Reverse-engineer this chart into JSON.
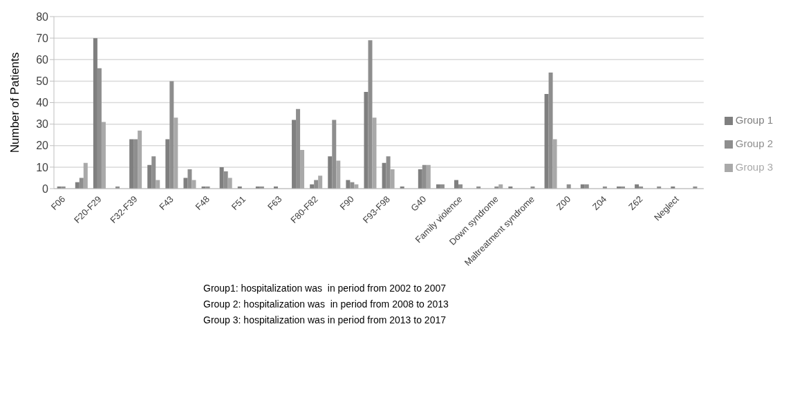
{
  "chart_data": {
    "type": "bar",
    "ylabel": "Number of Patients",
    "categories": [
      "F06",
      null,
      "F20-F29",
      null,
      "F32-F39",
      null,
      "F43",
      null,
      "F48",
      null,
      "F51",
      null,
      "F63",
      null,
      "F80-F82",
      null,
      "F90",
      null,
      "F93-F98",
      null,
      "G40",
      null,
      "Family violence",
      null,
      "Down syndrome",
      null,
      "Maltreatment syndrome",
      null,
      "Z00",
      null,
      "Z04",
      null,
      "Z62",
      null,
      "Neglect",
      null
    ],
    "series": [
      {
        "name": "Group 1",
        "color": "#7f7f7f",
        "values": [
          1,
          3,
          70,
          0,
          23,
          11,
          23,
          5,
          1,
          10,
          1,
          1,
          1,
          32,
          2,
          15,
          4,
          45,
          12,
          1,
          9,
          2,
          4,
          0,
          0,
          1,
          0,
          44,
          0,
          2,
          0,
          1,
          2,
          0,
          1,
          0
        ]
      },
      {
        "name": "Group 2",
        "color": "#8e8e8e",
        "values": [
          1,
          5,
          56,
          1,
          23,
          15,
          50,
          9,
          1,
          8,
          0,
          1,
          0,
          37,
          4,
          32,
          3,
          69,
          15,
          0,
          11,
          2,
          2,
          1,
          1,
          0,
          1,
          54,
          2,
          2,
          1,
          1,
          1,
          1,
          0,
          1
        ]
      },
      {
        "name": "Group 3",
        "color": "#a9a9a9",
        "values": [
          0,
          12,
          31,
          0,
          27,
          4,
          33,
          4,
          0,
          5,
          0,
          0,
          0,
          18,
          6,
          13,
          2,
          33,
          9,
          0,
          11,
          0,
          0,
          0,
          2,
          0,
          0,
          23,
          0,
          0,
          0,
          0,
          0,
          0,
          0,
          0
        ]
      }
    ],
    "ylim": [
      0,
      80
    ],
    "yticks": [
      0,
      10,
      20,
      30,
      40,
      50,
      60,
      70,
      80
    ],
    "grid": "y",
    "legend": "right",
    "annotations": [
      "Group1: hospitalization was  in period from 2002 to 2007",
      "Group 2: hospitalization was  in period from 2008 to 2013",
      "Group 3: hospitalization was in period from 2013 to 2017"
    ]
  }
}
